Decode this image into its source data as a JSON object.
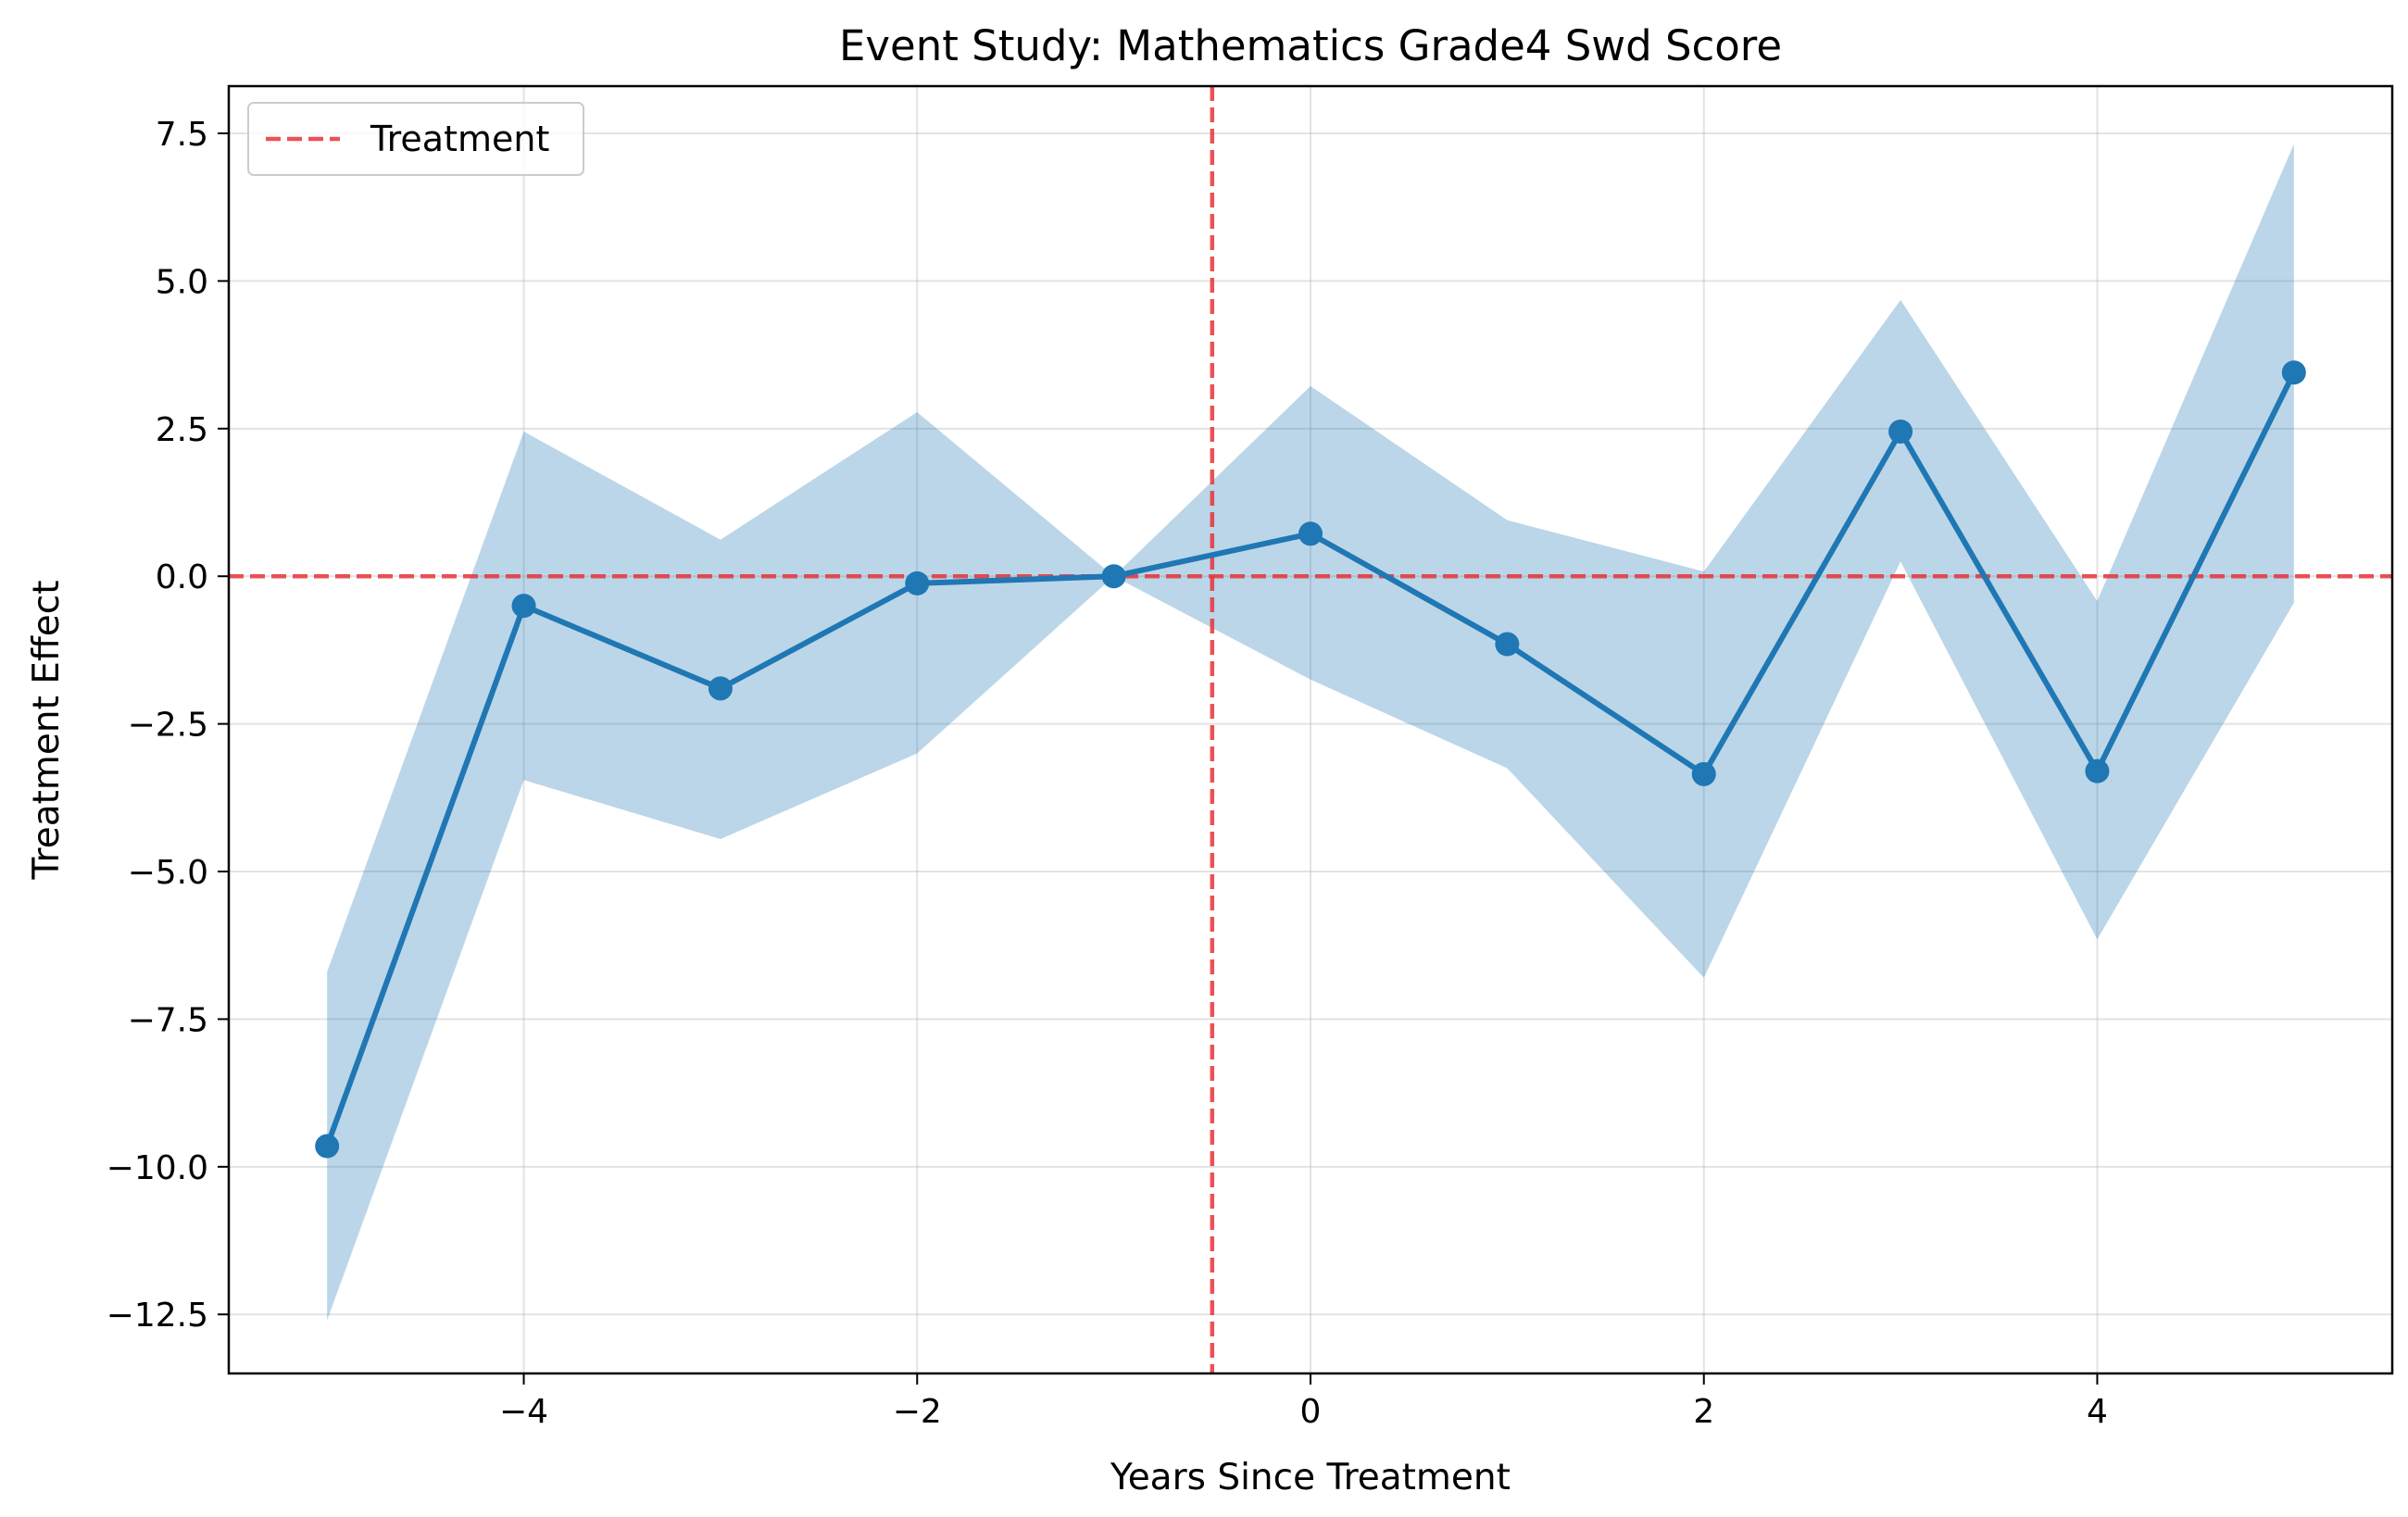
{
  "chart_data": {
    "type": "line",
    "title": "Event Study: Mathematics Grade4 Swd Score",
    "xlabel": "Years Since Treatment",
    "ylabel": "Treatment Effect",
    "xlim": [
      -5.5,
      5.5
    ],
    "ylim": [
      -13.5,
      8.3
    ],
    "grid": true,
    "legend_position": "top-left",
    "x_ticks": [
      -4,
      -2,
      0,
      2,
      4
    ],
    "x_tick_labels": [
      "−4",
      "−2",
      "0",
      "2",
      "4"
    ],
    "y_ticks": [
      7.5,
      5.0,
      2.5,
      0.0,
      -2.5,
      -5.0,
      -7.5,
      -10.0,
      -12.5
    ],
    "y_tick_labels": [
      "7.5",
      "5.0",
      "2.5",
      "0.0",
      "−2.5",
      "−5.0",
      "−7.5",
      "−10.0",
      "−12.5"
    ],
    "series": [
      {
        "x": [
          -5,
          -4,
          -3,
          -2,
          -1,
          0,
          1,
          2,
          3,
          4,
          5
        ],
        "values": [
          -9.65,
          -0.5,
          -1.9,
          -0.12,
          0.0,
          0.72,
          -1.15,
          -3.35,
          2.45,
          -3.3,
          3.45
        ],
        "ci_lower": [
          -12.6,
          -3.45,
          -4.45,
          -3.0,
          0.0,
          -1.75,
          -3.25,
          -6.8,
          0.25,
          -6.15,
          -0.45
        ],
        "ci_upper": [
          -6.7,
          2.45,
          0.62,
          2.78,
          0.0,
          3.22,
          0.95,
          0.08,
          4.68,
          -0.42,
          7.32
        ],
        "color": "#1f77b4",
        "band_color": "#1f77b4"
      }
    ],
    "reference_lines": [
      {
        "orientation": "horizontal",
        "value": 0.0,
        "color": "#e8343a",
        "style": "dashed"
      },
      {
        "orientation": "vertical",
        "value": -0.5,
        "color": "#e8343a",
        "style": "dashed",
        "legend_label": "Treatment"
      }
    ]
  }
}
